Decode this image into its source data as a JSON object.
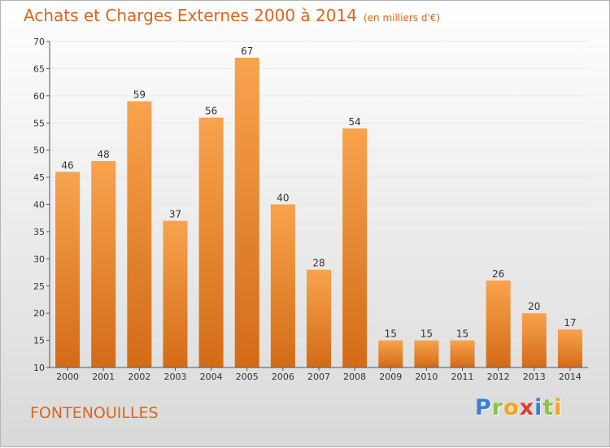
{
  "header": {
    "title": "Achats et Charges Externes 2000 à 2014",
    "unit": "(en milliers d'€)"
  },
  "commune": "FONTENOUILLES",
  "logo": {
    "text": "Proxiti",
    "letters": [
      {
        "ch": "P",
        "color": "#3a7fd5"
      },
      {
        "ch": "r",
        "color": "#8bc34a"
      },
      {
        "ch": "o",
        "color": "#f7a21b"
      },
      {
        "ch": "x",
        "color": "#e53935"
      },
      {
        "ch": "i",
        "color": "#3a7fd5"
      },
      {
        "ch": "t",
        "color": "#8bc34a"
      },
      {
        "ch": "i",
        "color": "#f7a21b"
      }
    ]
  },
  "colors": {
    "accent": "#d9661f",
    "bar_light": "#f8a34e",
    "bar_dark": "#d36b17"
  },
  "chart_data": {
    "type": "bar",
    "title": "Achats et Charges Externes 2000 à 2014",
    "categories": [
      "2000",
      "2001",
      "2002",
      "2003",
      "2004",
      "2005",
      "2006",
      "2007",
      "2008",
      "2009",
      "2010",
      "2011",
      "2012",
      "2013",
      "2014"
    ],
    "values": [
      46,
      48,
      59,
      37,
      56,
      67,
      40,
      28,
      54,
      15,
      15,
      15,
      26,
      20,
      17
    ],
    "ylim": [
      10,
      70
    ],
    "yticks": [
      10,
      15,
      20,
      25,
      30,
      35,
      40,
      45,
      50,
      55,
      60,
      65,
      70
    ],
    "grid": true,
    "xlabel": "",
    "ylabel": ""
  }
}
